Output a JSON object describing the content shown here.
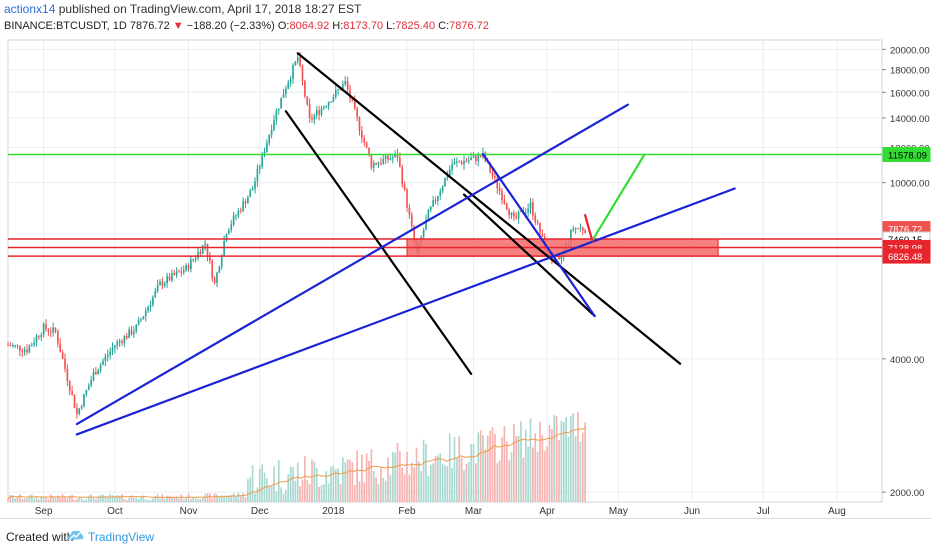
{
  "header": {
    "author": "actionx14",
    "published_text": "published on TradingView.com, April 17, 2018 18:27 EST",
    "symbol": "BINANCE:BTCUSDT, 1D",
    "last": "7876.72",
    "change": "−188.20 (−2.33%)",
    "open_label": "O:",
    "open": "8064.92",
    "high_label": "H:",
    "high": "8173.70",
    "low_label": "L:",
    "low": "7825.40",
    "close_label": "C:",
    "close": "7876.72"
  },
  "footer": {
    "created_with": "Created with",
    "brand": "TradingView"
  },
  "colors": {
    "up": "#26a69a",
    "down": "#ef5350",
    "trend_black": "#000000",
    "trend_blue": "#1a23d6",
    "green_line": "#33dd33",
    "support_red": "#e8252d",
    "zone_fill": "#f46a6a"
  },
  "chart_data": {
    "type": "candlestick",
    "yscale": "log",
    "ylim": [
      1900,
      21000
    ],
    "grid": true,
    "y_ticks": [
      "20000.00",
      "18000.00",
      "16000.00",
      "14000.00",
      "12000.00",
      "10000.00",
      "4000.00",
      "2000.00"
    ],
    "y_tick_values": [
      20000,
      18000,
      16000,
      14000,
      12000,
      10000,
      4000,
      2000
    ],
    "x_labels": [
      "Sep",
      "Oct",
      "Nov",
      "Dec",
      "2018",
      "Feb",
      "Mar",
      "Apr",
      "May",
      "Jun",
      "Jul",
      "Aug"
    ],
    "x_label_dates": [
      "2017-09-01",
      "2017-10-01",
      "2017-11-01",
      "2017-12-01",
      "2018-01-01",
      "2018-02-01",
      "2018-03-01",
      "2018-04-01",
      "2018-05-01",
      "2018-06-01",
      "2018-07-01",
      "2018-08-01"
    ],
    "xlim": [
      "2017-08-17",
      "2018-08-20"
    ],
    "price_path": [
      [
        "2017-08-17",
        4300
      ],
      [
        "2017-08-25",
        4200
      ],
      [
        "2017-09-01",
        4700
      ],
      [
        "2017-09-06",
        4600
      ],
      [
        "2017-09-15",
        3000
      ],
      [
        "2017-09-22",
        3700
      ],
      [
        "2017-10-01",
        4300
      ],
      [
        "2017-10-10",
        4700
      ],
      [
        "2017-10-20",
        5900
      ],
      [
        "2017-10-31",
        6400
      ],
      [
        "2017-11-08",
        7300
      ],
      [
        "2017-11-12",
        5900
      ],
      [
        "2017-11-17",
        7800
      ],
      [
        "2017-11-28",
        9700
      ],
      [
        "2017-12-07",
        14000
      ],
      [
        "2017-12-12",
        16500
      ],
      [
        "2017-12-17",
        19200
      ],
      [
        "2017-12-22",
        13800
      ],
      [
        "2018-01-06",
        16800
      ],
      [
        "2018-01-17",
        11000
      ],
      [
        "2018-01-28",
        11500
      ],
      [
        "2018-02-05",
        6900
      ],
      [
        "2018-02-10",
        8500
      ],
      [
        "2018-02-20",
        11000
      ],
      [
        "2018-03-05",
        11500
      ],
      [
        "2018-03-18",
        8200
      ],
      [
        "2018-03-25",
        8900
      ],
      [
        "2018-04-01",
        6900
      ],
      [
        "2018-04-06",
        6600
      ],
      [
        "2018-04-12",
        7900
      ],
      [
        "2018-04-17",
        7876.72
      ]
    ],
    "last_date": "2018-04-17",
    "volume_ma_visible": true,
    "price_labels": [
      {
        "value": 11578.09,
        "text": "11578.09",
        "color": "#33dd33",
        "text_color": "#000000"
      },
      {
        "value": 7876.72,
        "text": "7876.72",
        "color": "#ef5350",
        "text_color": "#ffffff"
      },
      {
        "value": 7460.15,
        "text": "7460.15",
        "color": "#ffffff",
        "text_color": "#000000"
      },
      {
        "value": 7138.98,
        "text": "7138.98",
        "color": "#e8252d",
        "text_color": "#ffffff"
      },
      {
        "value": 6826.48,
        "text": "6826.48",
        "color": "#e8252d",
        "text_color": "#ffffff"
      }
    ],
    "horizontal_lines": [
      {
        "value": 11578.09,
        "color": "#33dd33"
      },
      {
        "value": 7460.15,
        "color": "#e8252d"
      },
      {
        "value": 7138.98,
        "color": "#e8252d"
      },
      {
        "value": 6826.48,
        "color": "#e8252d"
      }
    ],
    "zone": {
      "from": "2018-02-01",
      "to": "2018-06-12",
      "low": 6826.48,
      "high": 7460.15,
      "color": "#f46a6a"
    },
    "trendlines": [
      {
        "color": "#000000",
        "from": [
          "2017-12-17",
          19600
        ],
        "to": [
          "2018-05-27",
          3900
        ]
      },
      {
        "color": "#000000",
        "from": [
          "2017-12-12",
          14500
        ],
        "to": [
          "2018-02-28",
          3700
        ]
      },
      {
        "color": "#000000",
        "from": [
          "2018-02-25",
          9400
        ],
        "to": [
          "2018-04-21",
          5000
        ]
      },
      {
        "color": "#1a23d6",
        "from": [
          "2017-09-15",
          2850
        ],
        "to": [
          "2018-05-05",
          15000
        ]
      },
      {
        "color": "#1a23d6",
        "from": [
          "2017-09-15",
          2700
        ],
        "to": [
          "2018-06-19",
          9700
        ]
      },
      {
        "color": "#1a23d6",
        "from": [
          "2018-03-05",
          11600
        ],
        "to": [
          "2018-04-21",
          5000
        ]
      },
      {
        "color": "#33dd33",
        "from": [
          "2018-04-20",
          7400
        ],
        "to": [
          "2018-05-12",
          11578
        ]
      },
      {
        "color": "#e8252d",
        "from": [
          "2018-04-17",
          8450
        ],
        "to": [
          "2018-04-20",
          7400
        ]
      }
    ]
  }
}
